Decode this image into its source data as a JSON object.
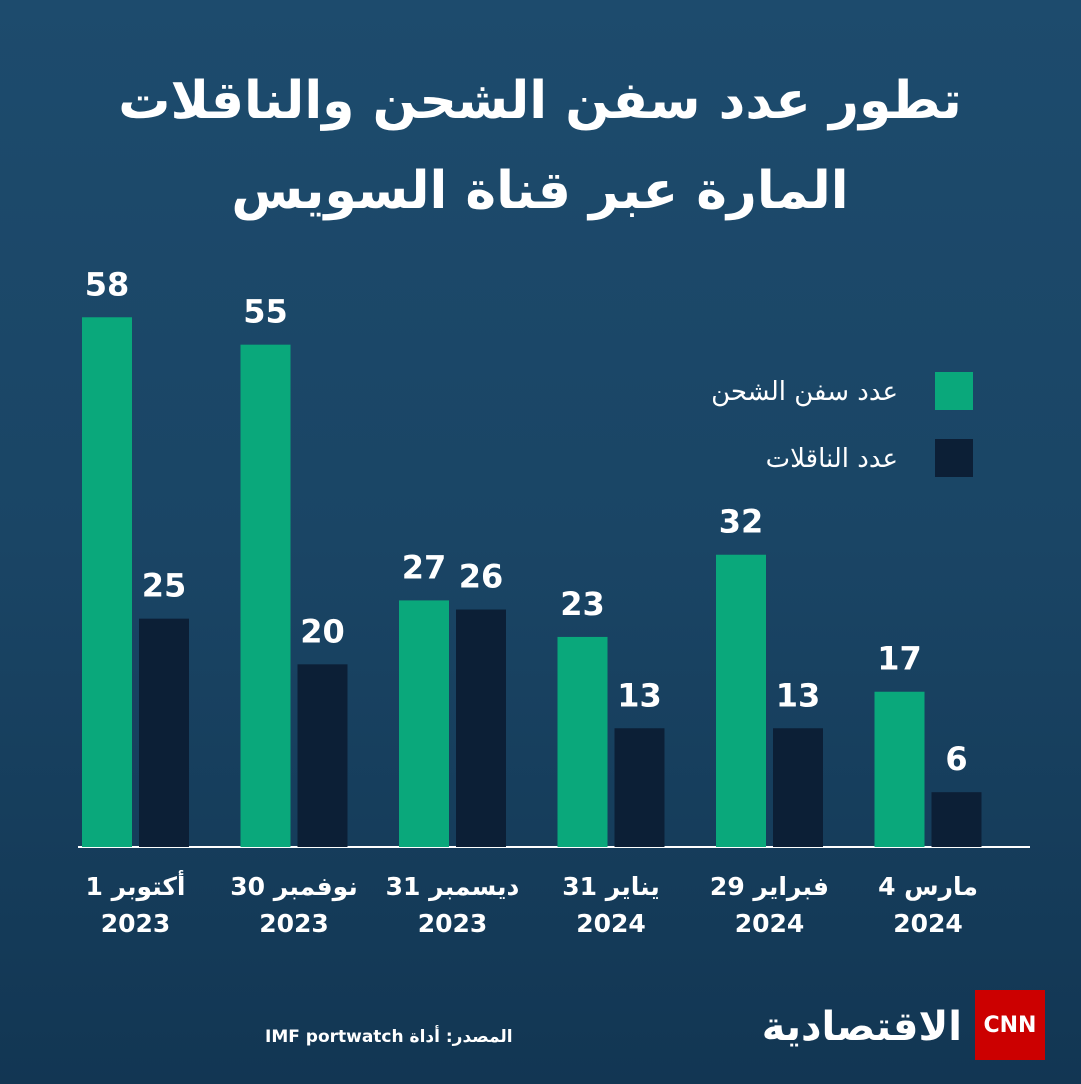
{
  "chart_data": {
    "type": "bar",
    "title": [
      "تطور عدد سفن الشحن والناقلات",
      "المارة عبر قناة السويس"
    ],
    "categories": [
      [
        "1 أكتوبر",
        "2023"
      ],
      [
        "30 نوفمبر",
        "2023"
      ],
      [
        "31 ديسمبر",
        "2023"
      ],
      [
        "31 يناير",
        "2024"
      ],
      [
        "29 فبراير",
        "2024"
      ],
      [
        "4 مارس",
        "2024"
      ]
    ],
    "series": [
      {
        "name": "عدد سفن الشحن",
        "color": "#0aa87b",
        "values": [
          58,
          55,
          27,
          23,
          32,
          17
        ]
      },
      {
        "name": "عدد الناقلات",
        "color": "#0c1f36",
        "values": [
          25,
          20,
          26,
          13,
          13,
          6
        ]
      }
    ],
    "ylim": [
      0,
      60
    ],
    "legend": "top-right",
    "source": "المصدر: أداة IMF portwatch",
    "brand": {
      "logo": "CNN",
      "name": "الاقتصادية"
    }
  }
}
